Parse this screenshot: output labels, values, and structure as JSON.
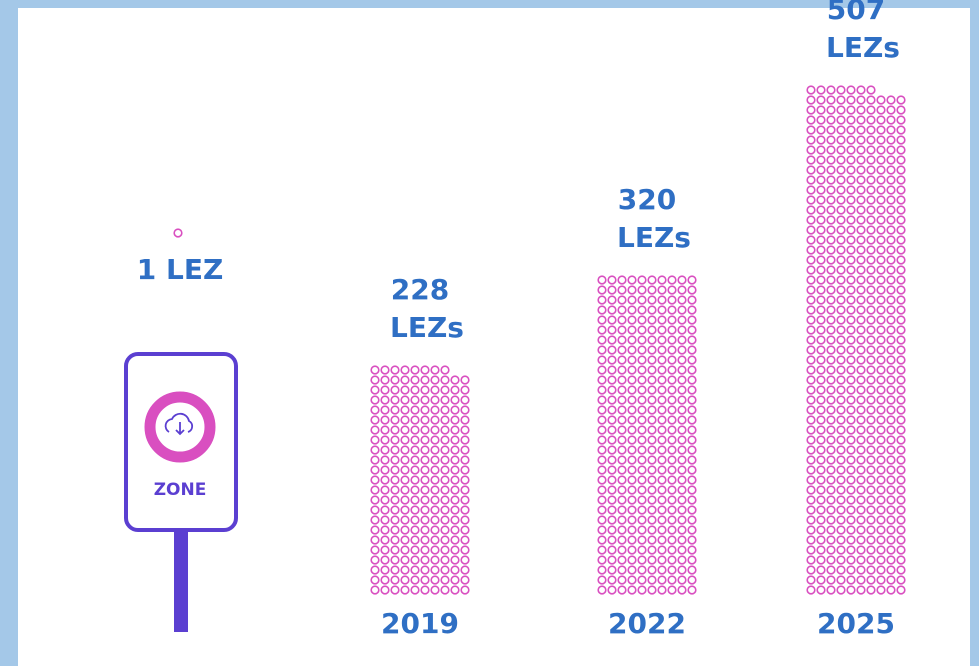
{
  "chart_data": {
    "type": "pictogram",
    "categories": [
      null,
      "2019",
      "2022",
      "2025"
    ],
    "values": [
      1,
      228,
      320,
      507
    ],
    "value_labels": [
      "1 LEZ",
      "228 LEZs",
      "320 LEZs",
      "507 LEZs"
    ],
    "color": "#d94fc0",
    "sign_label": "ZONE"
  }
}
